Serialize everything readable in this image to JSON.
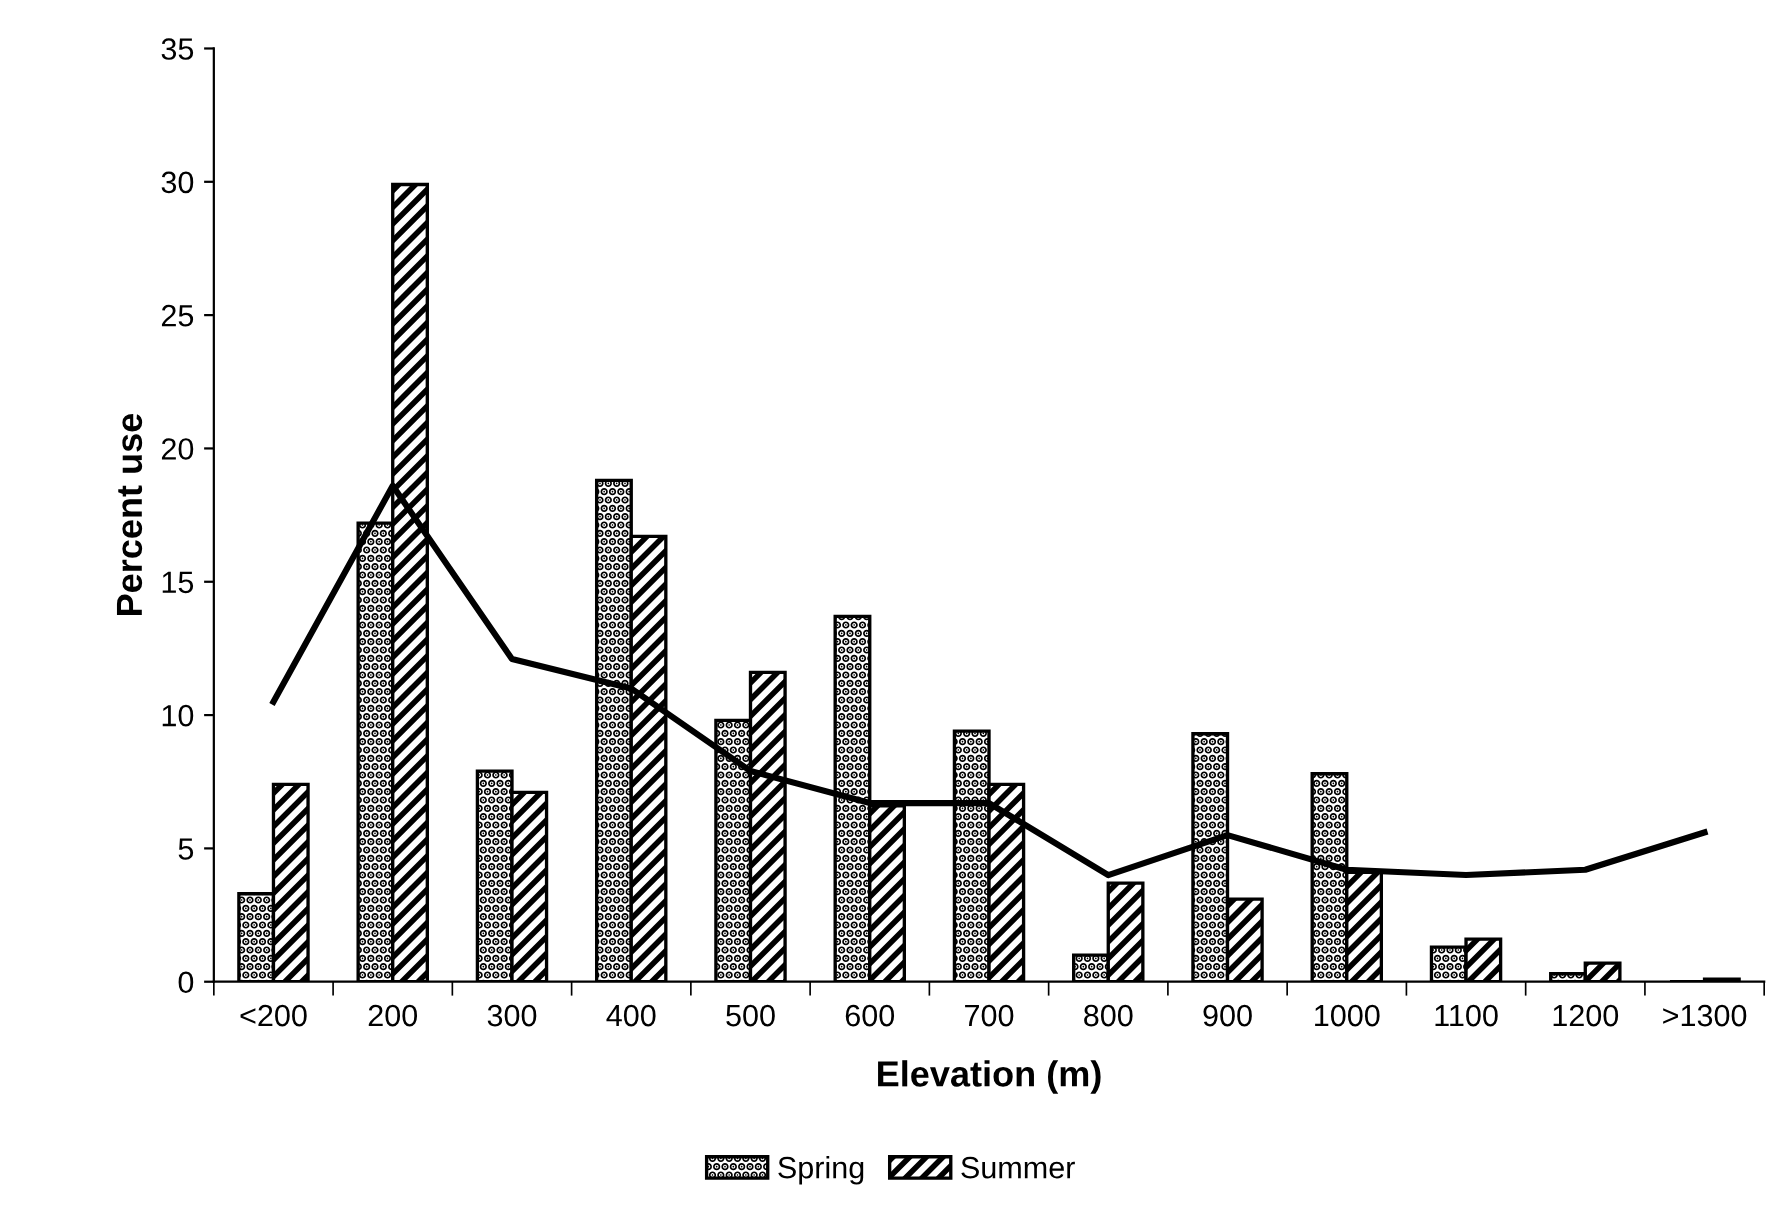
{
  "chart_data": {
    "type": "bar",
    "xlabel": "Elevation (m)",
    "ylabel": "Percent use",
    "categories": [
      "<200",
      "200",
      "300",
      "400",
      "500",
      "600",
      "700",
      "800",
      "900",
      "1000",
      "1100",
      "1200",
      ">1300"
    ],
    "series": [
      {
        "name": "Spring",
        "color": "#000000",
        "values": [
          3.3,
          17.2,
          7.9,
          18.8,
          9.8,
          13.7,
          9.4,
          1.0,
          9.3,
          7.8,
          1.3,
          0.3,
          0.0
        ]
      },
      {
        "name": "Summer",
        "color": "#000000",
        "values": [
          7.4,
          29.9,
          7.1,
          16.7,
          11.6,
          6.6,
          7.4,
          3.7,
          3.1,
          4.1,
          1.6,
          0.7,
          0.1
        ]
      },
      {
        "type": "line",
        "color": "#000000",
        "values": [
          10.5,
          18.6,
          12.1,
          11.0,
          7.9,
          6.7,
          6.7,
          4.0,
          5.5,
          4.2,
          4.0,
          4.2,
          5.6
        ]
      }
    ],
    "ylim": [
      0,
      35
    ],
    "yticks": [
      0,
      5,
      10,
      15,
      20,
      25,
      30,
      35
    ],
    "grid": false,
    "legend": "bottom",
    "marker": "none",
    "line_style": "solid"
  }
}
